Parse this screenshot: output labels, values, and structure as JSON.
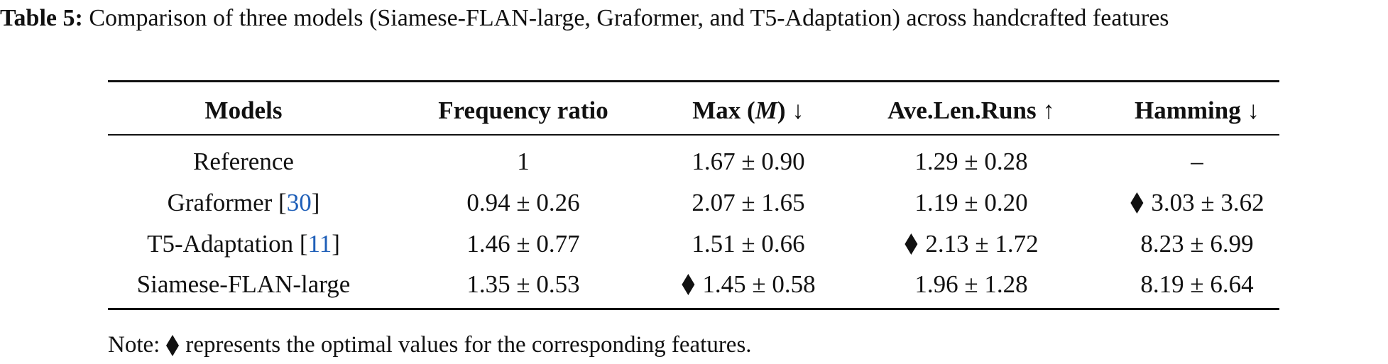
{
  "caption": {
    "label": "Table 5:",
    "text": "Comparison of three models (Siamese-FLAN-large, Graformer, and T5-Adaptation) across handcrafted features"
  },
  "table": {
    "headers": [
      [
        "Models"
      ],
      [
        "Frequency ratio"
      ],
      [
        "Max (",
        "M",
        ") ↓"
      ],
      [
        "Ave.Len.Runs ↑"
      ],
      [
        "Hamming ↓"
      ]
    ],
    "rows": [
      [
        [
          "Reference"
        ],
        "1",
        "1.67 ± 0.90",
        "1.29 ± 0.28",
        "–"
      ],
      [
        [
          "Graformer [",
          "30",
          "]"
        ],
        "0.94 ± 0.26",
        "2.07 ± 1.65",
        "1.19 ± 0.20",
        {
          "value": "3.03 ± 3.62",
          "optimal": true
        }
      ],
      [
        [
          "T5-Adaptation [",
          "11",
          "]"
        ],
        "1.46 ± 0.77",
        "1.51 ± 0.66",
        {
          "value": "2.13 ± 1.72",
          "optimal": true
        },
        "8.23 ± 6.99"
      ],
      [
        [
          "Siamese-FLAN-large"
        ],
        "1.35 ± 0.53",
        {
          "value": "1.45 ± 0.58",
          "optimal": true
        },
        "1.96 ± 1.28",
        "8.19 ± 6.64"
      ]
    ]
  },
  "note": {
    "prefix": "Note:",
    "text": "represents the optimal values for the corresponding features."
  }
}
